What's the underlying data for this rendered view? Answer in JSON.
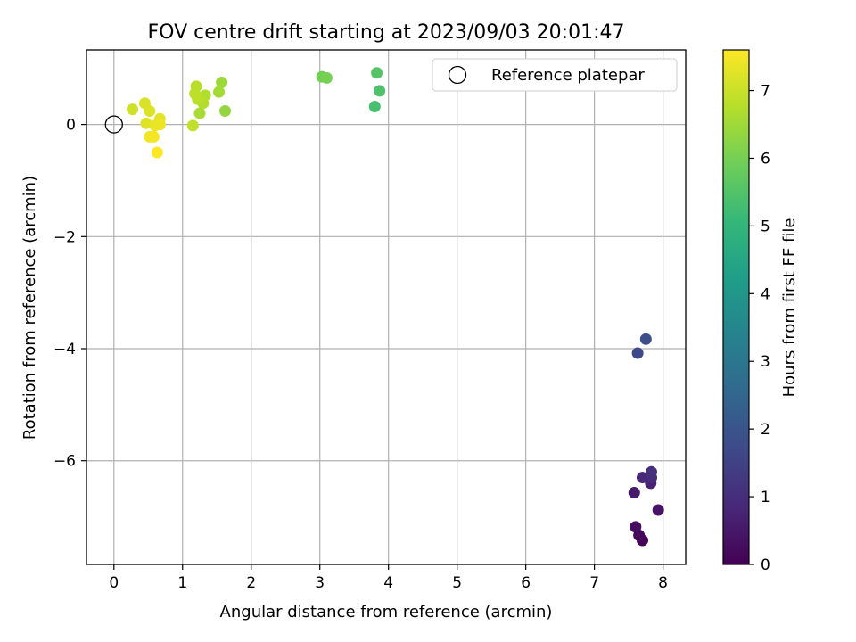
{
  "chart_data": {
    "type": "scatter",
    "title": "FOV centre drift starting at 2023/09/03 20:01:47",
    "xlabel": "Angular distance from reference (arcmin)",
    "ylabel": "Rotation from reference (arcmin)",
    "xlim": [
      -0.4,
      8.33
    ],
    "ylim": [
      -7.85,
      1.33
    ],
    "xticks": [
      0,
      1,
      2,
      3,
      4,
      5,
      6,
      7,
      8
    ],
    "yticks": [
      0,
      -2,
      -4,
      -6
    ],
    "ytick_labels": [
      "0",
      "−2",
      "−4",
      "−6"
    ],
    "grid": true,
    "legend": {
      "position": "top-right",
      "entries": [
        "Reference platepar"
      ]
    },
    "reference_point": {
      "x": 0,
      "y": 0
    },
    "colorbar": {
      "label": "Hours from first FF file",
      "range": [
        0,
        7.6
      ],
      "ticks": [
        0,
        1,
        2,
        3,
        4,
        5,
        6,
        7
      ],
      "colormap": "viridis"
    },
    "colormap_stops": [
      "#440154",
      "#482878",
      "#3e4989",
      "#31688e",
      "#26828e",
      "#1f9e89",
      "#35b779",
      "#6ece58",
      "#b5de2b",
      "#fde725"
    ],
    "points": [
      {
        "x": 7.7,
        "y": -7.42,
        "t": 0.05
      },
      {
        "x": 7.65,
        "y": -7.33,
        "t": 0.15
      },
      {
        "x": 7.6,
        "y": -7.18,
        "t": 0.25
      },
      {
        "x": 7.93,
        "y": -6.88,
        "t": 0.4
      },
      {
        "x": 7.58,
        "y": -6.57,
        "t": 0.55
      },
      {
        "x": 7.82,
        "y": -6.4,
        "t": 0.7
      },
      {
        "x": 7.7,
        "y": -6.3,
        "t": 0.85
      },
      {
        "x": 7.83,
        "y": -6.3,
        "t": 0.95
      },
      {
        "x": 7.83,
        "y": -6.2,
        "t": 1.05
      },
      {
        "x": 7.63,
        "y": -4.08,
        "t": 1.7
      },
      {
        "x": 7.75,
        "y": -3.83,
        "t": 1.85
      },
      {
        "x": 3.8,
        "y": 0.32,
        "t": 5.35
      },
      {
        "x": 3.87,
        "y": 0.6,
        "t": 5.45
      },
      {
        "x": 3.83,
        "y": 0.92,
        "t": 5.55
      },
      {
        "x": 3.03,
        "y": 0.85,
        "t": 5.95
      },
      {
        "x": 3.1,
        "y": 0.83,
        "t": 6.0
      },
      {
        "x": 1.62,
        "y": 0.24,
        "t": 6.35
      },
      {
        "x": 1.57,
        "y": 0.75,
        "t": 6.45
      },
      {
        "x": 1.53,
        "y": 0.58,
        "t": 6.55
      },
      {
        "x": 1.25,
        "y": 0.2,
        "t": 6.6
      },
      {
        "x": 1.33,
        "y": 0.52,
        "t": 6.7
      },
      {
        "x": 1.3,
        "y": 0.38,
        "t": 6.72
      },
      {
        "x": 1.2,
        "y": 0.68,
        "t": 6.78
      },
      {
        "x": 1.22,
        "y": 0.45,
        "t": 6.82
      },
      {
        "x": 1.18,
        "y": 0.55,
        "t": 6.86
      },
      {
        "x": 1.15,
        "y": -0.02,
        "t": 6.9
      },
      {
        "x": 0.27,
        "y": 0.27,
        "t": 7.05
      },
      {
        "x": 0.45,
        "y": 0.38,
        "t": 7.15
      },
      {
        "x": 0.52,
        "y": 0.24,
        "t": 7.2
      },
      {
        "x": 0.47,
        "y": 0.02,
        "t": 7.25
      },
      {
        "x": 0.67,
        "y": 0.1,
        "t": 7.3
      },
      {
        "x": 0.6,
        "y": -0.02,
        "t": 7.35
      },
      {
        "x": 0.67,
        "y": 0.0,
        "t": 7.4
      },
      {
        "x": 0.52,
        "y": -0.22,
        "t": 7.45
      },
      {
        "x": 0.58,
        "y": -0.22,
        "t": 7.5
      },
      {
        "x": 0.63,
        "y": -0.5,
        "t": 7.58
      }
    ]
  }
}
